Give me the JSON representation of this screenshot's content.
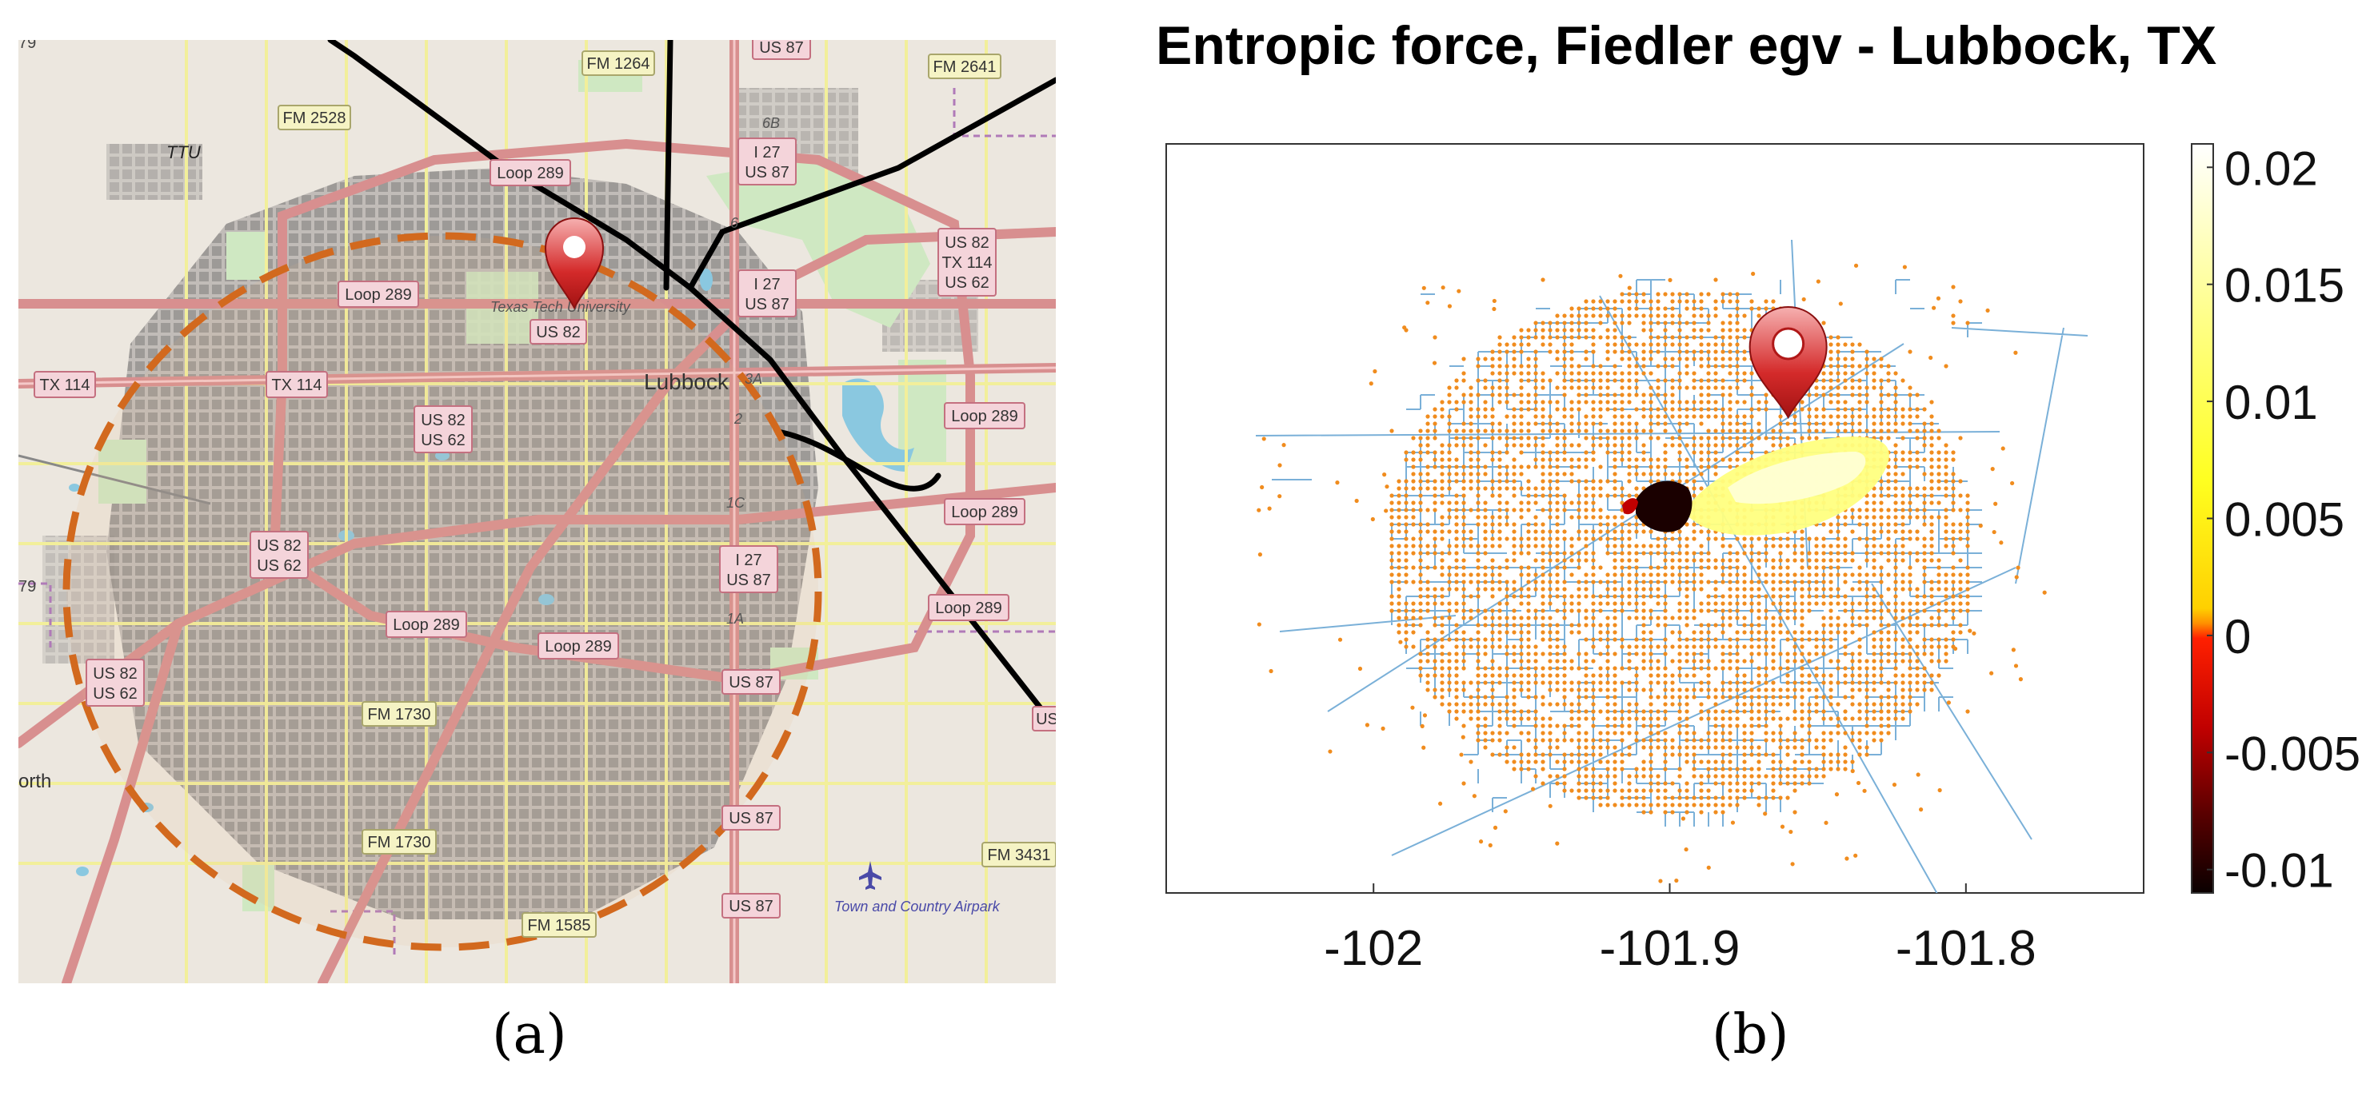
{
  "panel_a": {
    "caption": "(a)",
    "map_labels": {
      "ttu": "TTU",
      "lubbock": "Lubbock",
      "texas_tech": "Texas Tech University",
      "north": "orth",
      "airport": "Town and Country Airpark",
      "fm1264": "FM 1264",
      "fm2528": "FM 2528",
      "fm2641": "FM 2641",
      "fm1730": "FM 1730",
      "fm1585": "FM 1585",
      "fm3431": "FM 3431",
      "loop289": "Loop 289",
      "tx114": "TX 114",
      "us82_us62": "US 82 / US 62",
      "us82_tx114_us62": "US 82 / TX 114 / US 62",
      "i27_us87": "I 27 / US 87",
      "us87": "US 87",
      "us82": "US 82",
      "exit_6b": "6B",
      "exit_6": "6",
      "exit_3a": "3A",
      "exit_2": "2",
      "exit_1c": "1C",
      "exit_1a": "1A",
      "edge_79": "79",
      "edge_us": "US"
    },
    "colors": {
      "map_background": "#ece7df",
      "urban_blocks": "#8d8b89",
      "highway": "#d88f8f",
      "road_yellow": "#f2ef9a",
      "park": "#cfe8c2",
      "water": "#8ac8e0",
      "dashed_circle": "#d2691e",
      "network_lines": "#000000",
      "marker": "#d42a2a"
    }
  },
  "panel_b": {
    "caption": "(b)",
    "colors": {
      "network_node": "#f08c1e",
      "network_edge": "#7ab0d8",
      "high_value": "#ffff80",
      "low_value": "#1a0000",
      "marker": "#d42a2a"
    },
    "chart_data": {
      "type": "scatter",
      "title": "Entropic force, Fiedler egv - Lubbock, TX",
      "xlabel": "",
      "ylabel": "",
      "xlim": [
        -102.07,
        -101.74
      ],
      "x_ticks": [
        -102,
        -101.9,
        -101.8
      ],
      "colorbar": {
        "colormap": "hot",
        "range": [
          -0.011,
          0.021
        ],
        "ticks": [
          0.02,
          0.015,
          0.01,
          0.005,
          0,
          -0.005,
          -0.01
        ],
        "tick_labels": [
          "0.02",
          "0.015",
          "0.01",
          "0.005",
          "0",
          "-0.005",
          "-0.01"
        ]
      },
      "marker_location": {
        "x": -101.86
      },
      "highlight_regions": [
        {
          "name": "",
          "x_range": [
            -101.89,
            -101.845
          ],
          "value": 0.02
        },
        {
          "name": "",
          "x_range": [
            -101.905,
            -101.885
          ],
          "value": -0.01
        }
      ],
      "background_value": 0
    }
  }
}
